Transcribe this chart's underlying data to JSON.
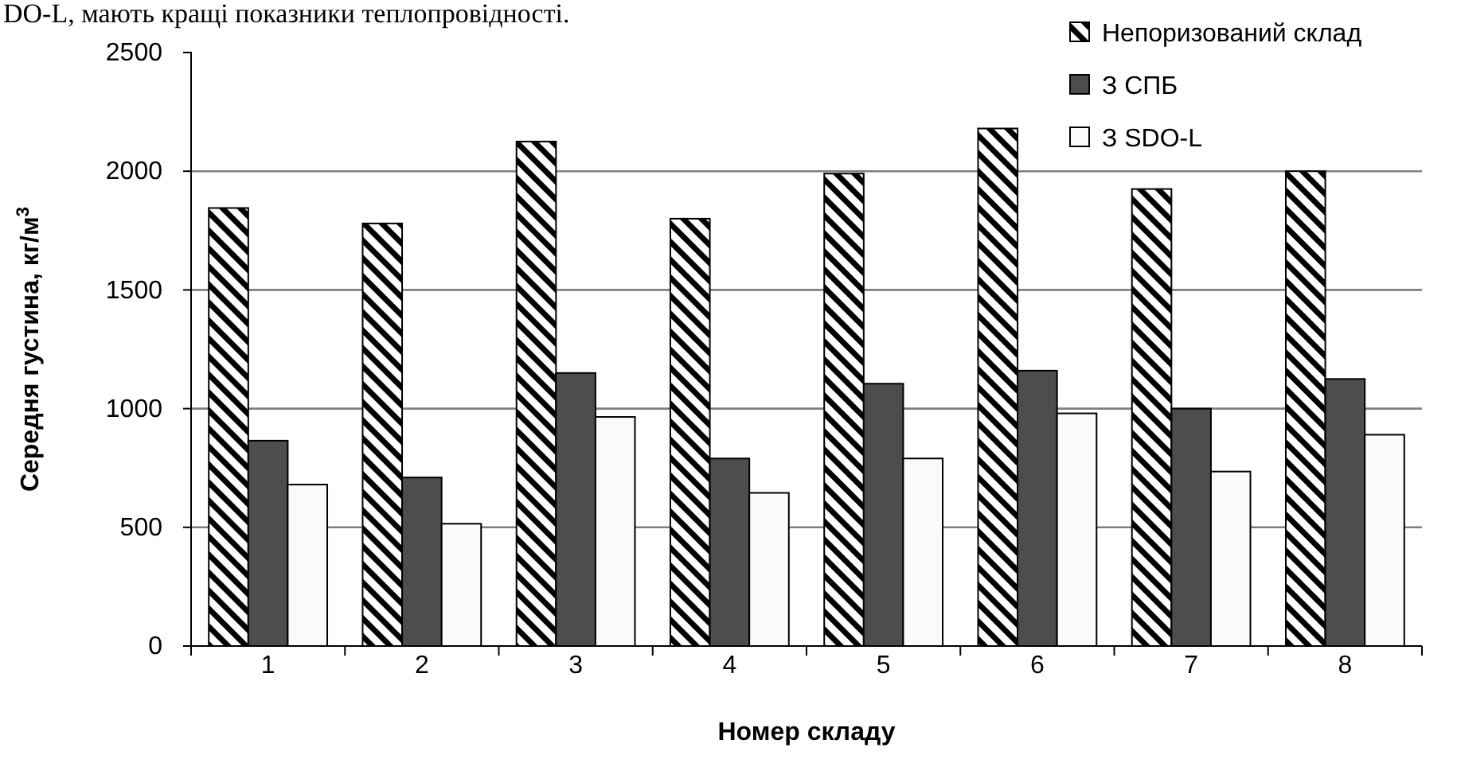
{
  "chart_data": {
    "type": "bar",
    "xlabel": "Номер складу",
    "ylabel": "Середня густина, кг/м$^{3}$",
    "categories": [
      "1",
      "2",
      "3",
      "4",
      "5",
      "6",
      "7",
      "8"
    ],
    "series": [
      {
        "name": "Непоризований склад",
        "color": "#000000",
        "values": [
          1845,
          1780,
          2125,
          1800,
          1990,
          2180,
          1925,
          2000
        ]
      },
      {
        "name": "З СПБ",
        "color": "#4d4d4d",
        "values": [
          865,
          710,
          1150,
          790,
          1105,
          1160,
          1000,
          1125
        ]
      },
      {
        "name": "З SDO-L",
        "color": "#fafafa",
        "values": [
          680,
          515,
          965,
          645,
          790,
          980,
          735,
          890
        ]
      }
    ],
    "ylim": [
      0,
      2500
    ],
    "yticks": [
      0,
      500,
      1000,
      1500,
      2000,
      2500
    ],
    "grid": "y",
    "legend": "top right",
    "annotations": [
      "DO-L, мають кращі показники теплопровідності."
    ]
  }
}
